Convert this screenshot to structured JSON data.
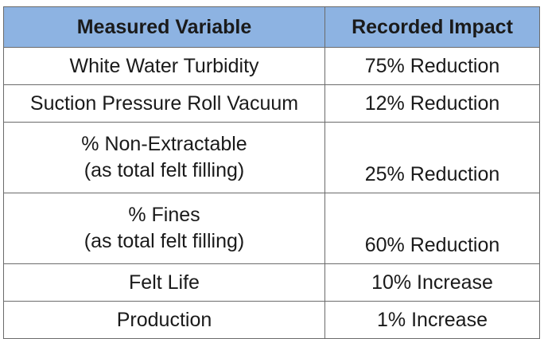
{
  "table": {
    "headers": [
      "Measured Variable",
      "Recorded Impact"
    ],
    "rows": [
      {
        "variable": "White Water Turbidity",
        "impact": "75% Reduction"
      },
      {
        "variable": "Suction Pressure Roll Vacuum",
        "impact": "12% Reduction"
      },
      {
        "variable_line1": "% Non-Extractable",
        "variable_line2": "(as total felt filling)",
        "impact": "25% Reduction"
      },
      {
        "variable_line1": "% Fines",
        "variable_line2": "(as total felt filling)",
        "impact": "60% Reduction"
      },
      {
        "variable": "Felt Life",
        "impact": "10% Increase"
      },
      {
        "variable": "Production",
        "impact": "1% Increase"
      }
    ]
  },
  "colors": {
    "header_background": "#8db3e2",
    "border": "#6b6b6b",
    "text": "#1a1a1a"
  }
}
